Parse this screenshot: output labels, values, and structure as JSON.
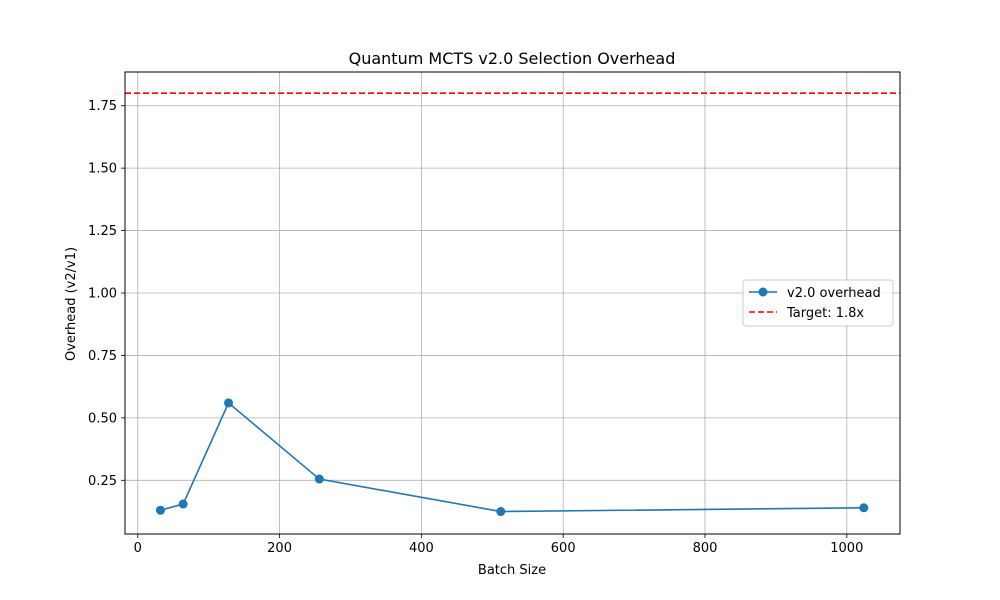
{
  "chart_data": {
    "type": "line",
    "title": "Quantum MCTS v2.0 Selection Overhead",
    "xlabel": "Batch Size",
    "ylabel": "Overhead (v2/v1)",
    "xlim": [
      -18,
      1075
    ],
    "ylim": [
      0.035,
      1.885
    ],
    "xticks": [
      0,
      200,
      400,
      600,
      800,
      1000
    ],
    "xtick_labels": [
      "0",
      "200",
      "400",
      "600",
      "800",
      "1000"
    ],
    "yticks": [
      0.25,
      0.5,
      0.75,
      1.0,
      1.25,
      1.5,
      1.75
    ],
    "ytick_labels": [
      "0.25",
      "0.50",
      "0.75",
      "1.00",
      "1.25",
      "1.50",
      "1.75"
    ],
    "grid": true,
    "legend_position": "center-right",
    "series": [
      {
        "name": "v2.0 overhead",
        "style": "solid-line-with-circle-markers",
        "color": "#1f77b4",
        "x": [
          32,
          64,
          128,
          256,
          512,
          1024
        ],
        "y": [
          0.13,
          0.155,
          0.56,
          0.255,
          0.125,
          0.14
        ]
      }
    ],
    "reference_lines": [
      {
        "name": "Target: 1.8x",
        "orientation": "horizontal",
        "value": 1.8,
        "style": "dashed",
        "color": "#ff0000"
      }
    ]
  }
}
